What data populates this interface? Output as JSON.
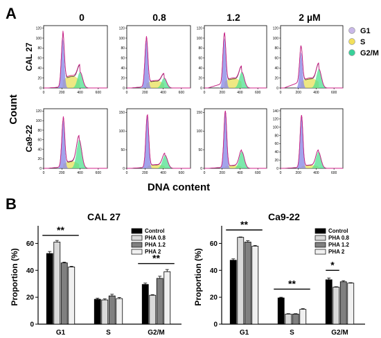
{
  "panel_a": {
    "label": "A",
    "conc_labels": [
      "0",
      "0.8",
      "1.2",
      "2 µM"
    ],
    "row_labels": [
      "CAL 27",
      "Ca9-22"
    ],
    "x_ticks": [
      "0",
      "200",
      "400",
      "600"
    ],
    "y_ticks_row": [
      [
        [
          "0",
          "20",
          "40",
          "60",
          "80",
          "100",
          "120"
        ],
        [
          "0",
          "20",
          "40",
          "60",
          "80",
          "100",
          "120"
        ],
        [
          "0",
          "20",
          "40",
          "60",
          "80",
          "100",
          "120"
        ],
        [
          "0",
          "20",
          "40",
          "60",
          "80",
          "100",
          "120"
        ]
      ],
      [
        [
          "0",
          "20",
          "40",
          "60",
          "80",
          "100",
          "120"
        ],
        [
          "0",
          "50",
          "100",
          "150"
        ],
        [
          "0",
          "50",
          "100",
          "150"
        ],
        [
          "0",
          "20",
          "40",
          "60",
          "80",
          "100",
          "120",
          "140"
        ]
      ]
    ],
    "y_max_row": [
      [
        125,
        125,
        125,
        125
      ],
      [
        125,
        160,
        160,
        145
      ]
    ],
    "hist_params": [
      [
        {
          "g1": 100,
          "g1pos": 210,
          "sh": 25,
          "g2": 32,
          "g2pos": 400,
          "tail": 0.02
        },
        {
          "g1": 95,
          "g1pos": 215,
          "sh": 15,
          "g2": 20,
          "g2pos": 410,
          "tail": 0.03
        },
        {
          "g1": 100,
          "g1pos": 225,
          "sh": 20,
          "g2": 32,
          "g2pos": 420,
          "tail": 0.1
        },
        {
          "g1": 72,
          "g1pos": 230,
          "sh": 20,
          "g2": 38,
          "g2pos": 430,
          "tail": 0.18
        }
      ],
      [
        {
          "g1": 100,
          "g1pos": 215,
          "sh": 15,
          "g2": 60,
          "g2pos": 390,
          "tail": 0.03
        },
        {
          "g1": 140,
          "g1pos": 225,
          "sh": 10,
          "g2": 35,
          "g2pos": 420,
          "tail": 0.02
        },
        {
          "g1": 150,
          "g1pos": 235,
          "sh": 8,
          "g2": 45,
          "g2pos": 420,
          "tail": 0.02
        },
        {
          "g1": 125,
          "g1pos": 235,
          "sh": 8,
          "g2": 40,
          "g2pos": 425,
          "tail": 0.02
        }
      ]
    ],
    "xlabel": "DNA content",
    "ylabel": "Count",
    "legend": [
      {
        "label": "G1",
        "color": "#c9b8e8"
      },
      {
        "label": "S",
        "color": "#f2e05c"
      },
      {
        "label": "G2/M",
        "color": "#38d19a"
      }
    ],
    "colors": {
      "g1": "#8c8ce6",
      "s": "#e8e05a",
      "g2": "#50e090",
      "fit": "#d0208a",
      "data": "#333333"
    }
  },
  "panel_b": {
    "label": "B",
    "chart_data": [
      {
        "type": "bar",
        "title": "CAL 27",
        "categories": [
          "G1",
          "S",
          "G2/M"
        ],
        "ylabel": "Proportion (%)",
        "ylim": [
          0,
          70
        ],
        "yticks": [
          "0",
          "20",
          "40",
          "60"
        ],
        "series": [
          {
            "name": "Control",
            "values": [
              52.5,
              18.5,
              29.5
            ],
            "errors": [
              1.5,
              0.8,
              1.0
            ],
            "color": "#000000"
          },
          {
            "name": "PHA 0.8",
            "values": [
              61,
              18,
              21.5
            ],
            "errors": [
              1.2,
              0.8,
              0.4
            ],
            "color": "#d9d9d9"
          },
          {
            "name": "PHA 1.2",
            "values": [
              45.5,
              21,
              34
            ],
            "errors": [
              0.6,
              1.2,
              1.6
            ],
            "color": "#808080"
          },
          {
            "name": "PHA 2",
            "values": [
              42.5,
              19,
              39
            ],
            "errors": [
              0.5,
              0.8,
              1.6
            ],
            "color": "#f0f0f0"
          }
        ],
        "annotations": [
          {
            "text": "**",
            "category": "G1",
            "level": 66
          },
          {
            "text": "**",
            "category": "G2/M",
            "level": 45
          }
        ]
      },
      {
        "type": "bar",
        "title": "Ca9-22",
        "categories": [
          "G1",
          "S",
          "G2/M"
        ],
        "ylabel": "Proportion (%)",
        "ylim": [
          0,
          70
        ],
        "yticks": [
          "0",
          "20",
          "40",
          "60"
        ],
        "series": [
          {
            "name": "Control",
            "values": [
              47.5,
              19.5,
              33
            ],
            "errors": [
              1.0,
              0.5,
              1.3
            ],
            "color": "#000000"
          },
          {
            "name": "PHA 0.8",
            "values": [
              64.5,
              7.5,
              27.5
            ],
            "errors": [
              0.3,
              0.3,
              0.3
            ],
            "color": "#d9d9d9"
          },
          {
            "name": "PHA 1.2",
            "values": [
              61,
              7.5,
              31.5
            ],
            "errors": [
              1.0,
              0.3,
              0.8
            ],
            "color": "#808080"
          },
          {
            "name": "PHA 2",
            "values": [
              58,
              11,
              30.5
            ],
            "errors": [
              0.5,
              0.5,
              0.3
            ],
            "color": "#f0f0f0"
          }
        ],
        "annotations": [
          {
            "text": "**",
            "category": "G1",
            "level": 70
          },
          {
            "text": "**",
            "category": "S",
            "level": 26
          },
          {
            "text": "*",
            "category": "G2/M",
            "level": 40
          }
        ]
      }
    ]
  }
}
